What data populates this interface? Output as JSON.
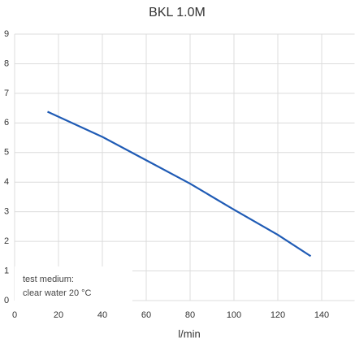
{
  "chart_data": {
    "type": "line",
    "title": "BKL 1.0M",
    "x_label": "l/min",
    "x": [
      15,
      40,
      60,
      80,
      100,
      120,
      135
    ],
    "series": [
      {
        "name": "BKL 1.0M",
        "color": "#1f5bb5",
        "values": [
          6.38,
          5.53,
          4.74,
          3.95,
          3.07,
          2.22,
          1.5
        ]
      }
    ],
    "xlim": [
      0,
      155
    ],
    "xticks": [
      0,
      20,
      40,
      60,
      80,
      100,
      120,
      140
    ],
    "ylim": [
      0,
      9
    ],
    "yticks": [
      0,
      1,
      2,
      3,
      4,
      5,
      6,
      7,
      8,
      9
    ],
    "grid": true,
    "annotation": [
      "test medium:",
      "clear water 20 °C"
    ]
  }
}
